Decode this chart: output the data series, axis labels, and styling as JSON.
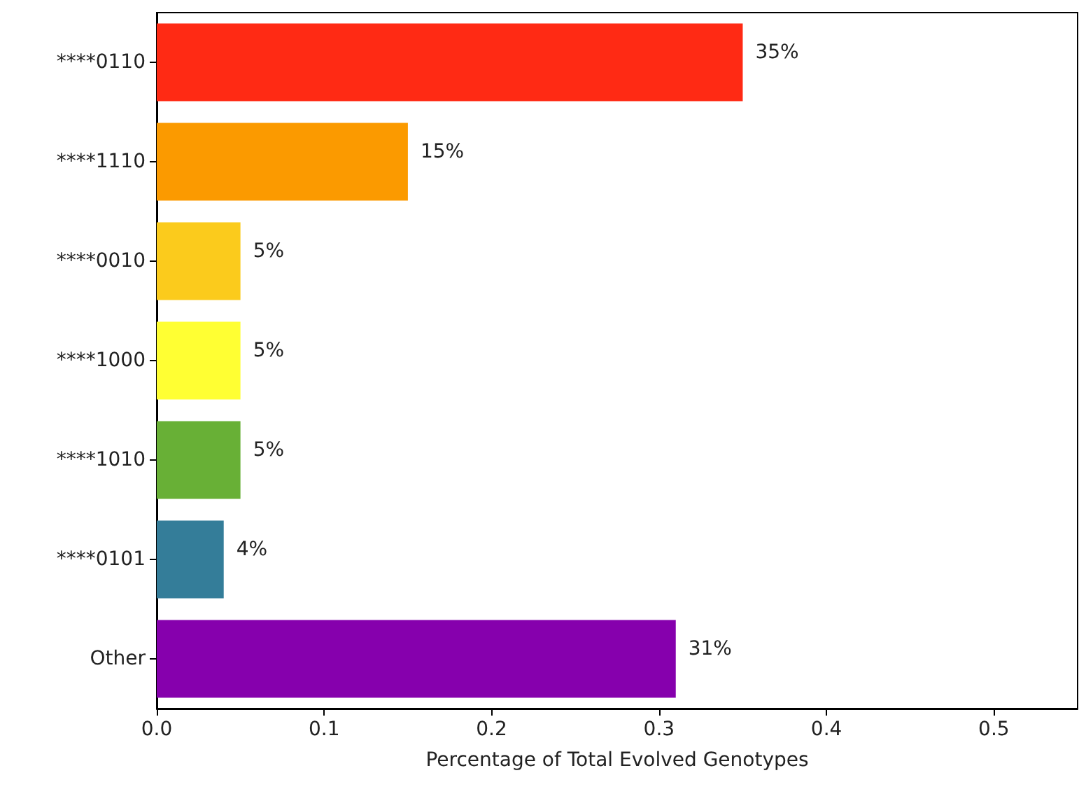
{
  "chart_data": {
    "type": "bar",
    "orientation": "horizontal",
    "xlabel": "Percentage of Total Evolved Genotypes",
    "categories": [
      "****0110",
      "****1110",
      "****0010",
      "****1000",
      "****1010",
      "****0101",
      "Other"
    ],
    "values": [
      0.35,
      0.15,
      0.05,
      0.05,
      0.05,
      0.04,
      0.31
    ],
    "colors": [
      "#ff2a14",
      "#fb9a00",
      "#fbcb1c",
      "#ffff33",
      "#68b036",
      "#347d99",
      "#8600ad"
    ],
    "value_labels": [
      "35%",
      "15%",
      "5%",
      "5%",
      "5%",
      "4%",
      "31%"
    ],
    "xlim": [
      0,
      0.55
    ],
    "xticks": [
      {
        "value": 0,
        "label": "0.0"
      },
      {
        "value": 0.1,
        "label": "0.1"
      },
      {
        "value": 0.2,
        "label": "0.2"
      },
      {
        "value": 0.3,
        "label": "0.3"
      },
      {
        "value": 0.4,
        "label": "0.4"
      },
      {
        "value": 0.5,
        "label": "0.5"
      }
    ],
    "grid": false
  }
}
